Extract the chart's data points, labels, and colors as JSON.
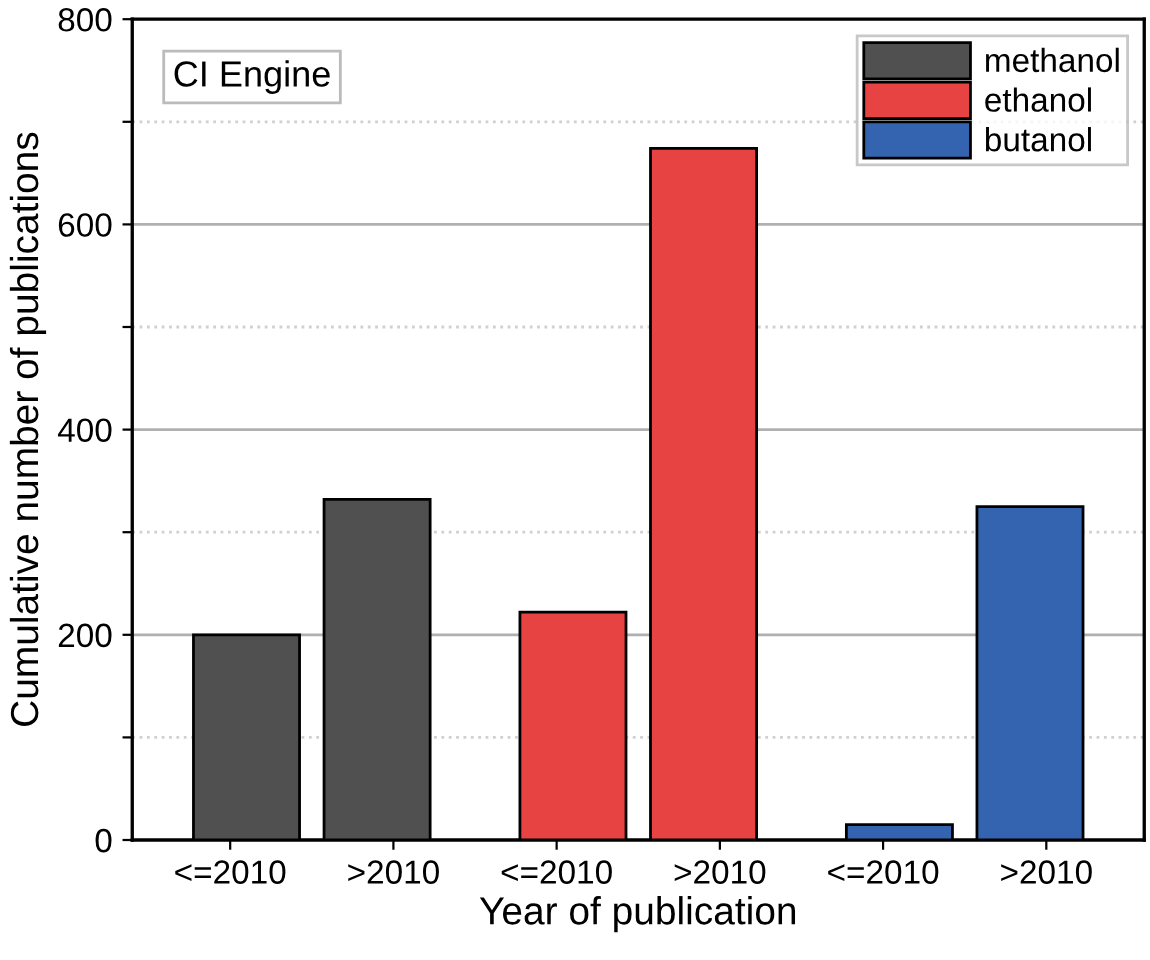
{
  "chart_data": {
    "type": "bar",
    "xlabel": "Year of publication",
    "ylabel": "Cumulative number of publications",
    "categories": [
      "<=2010",
      ">2010",
      "<=2010",
      ">2010",
      "<=2010",
      ">2010"
    ],
    "series": [
      {
        "name": "methanol",
        "color": "#505050",
        "values": [
          200,
          332,
          null,
          null,
          null,
          null
        ]
      },
      {
        "name": "ethanol",
        "color": "#e84343",
        "values": [
          null,
          null,
          222,
          674,
          null,
          null
        ]
      },
      {
        "name": "butanol",
        "color": "#3464b0",
        "values": [
          null,
          null,
          null,
          null,
          15,
          325
        ]
      }
    ],
    "ylim": [
      0,
      800
    ],
    "yticks": [
      0,
      {
        "value": 100,
        "label": null
      },
      200,
      {
        "value": 300,
        "label": null
      },
      400,
      {
        "value": 500,
        "label": null
      },
      600,
      {
        "value": 700,
        "label": null
      },
      800
    ],
    "grid": "y",
    "legend": "top right",
    "annotations": [
      "CI Engine"
    ]
  }
}
